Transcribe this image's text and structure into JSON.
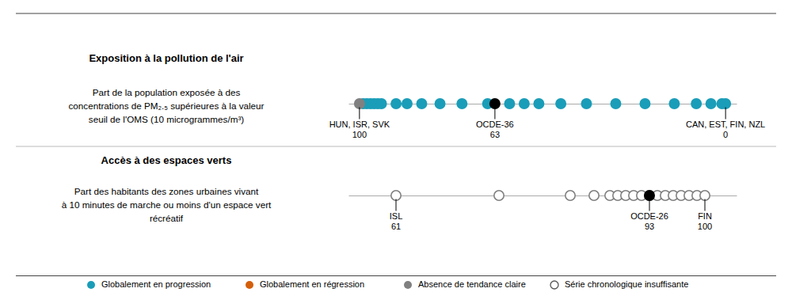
{
  "chart_data": [
    {
      "type": "dot",
      "title": "Exposition à la pollution de l'air",
      "subtitle": "Part de la population exposée à des\nconcentrations de PM₂.₅ supérieures à la valeur\nseuil de l'OMS (10 microgrammes/m³)",
      "xlim": [
        103,
        -3
      ],
      "tick_labels": false,
      "series": [
        {
          "name": "Globalement en progression",
          "color": "#1a9db8",
          "marker": "filled",
          "values": [
            99,
            98,
            97,
            96,
            95,
            94,
            90,
            87,
            83,
            78,
            72,
            65,
            59,
            55,
            51,
            45,
            38,
            30,
            22,
            14,
            8,
            4,
            1,
            0
          ]
        },
        {
          "name": "Absence de tendance claire",
          "color": "#808080",
          "marker": "filled",
          "values": [
            100
          ]
        },
        {
          "color": "#000000",
          "marker": "filled",
          "values": [
            63
          ]
        }
      ],
      "annotations": [
        {
          "x": 100,
          "label": "HUN, ISR, SVK",
          "value": 100
        },
        {
          "x": 63,
          "label": "OCDE-36",
          "value": 63
        },
        {
          "x": 0,
          "label": "CAN, EST, FIN, NZL",
          "value": 0
        }
      ]
    },
    {
      "type": "dot",
      "title": "Accès à des espaces verts",
      "subtitle": "Part des habitants des zones urbaines vivant\nà 10 minutes de marche ou moins d'un espace vert\nrécréatif",
      "xlim": [
        55,
        104
      ],
      "tick_labels": false,
      "series": [
        {
          "name": "Série chronologique insuffisante",
          "color": "#808080",
          "marker": "open",
          "values": [
            61,
            74,
            83,
            86,
            88,
            89,
            90,
            91,
            92,
            93,
            94,
            95,
            96,
            97,
            98,
            99,
            100
          ]
        },
        {
          "color": "#000000",
          "marker": "filled",
          "values": [
            93
          ]
        }
      ],
      "annotations": [
        {
          "x": 61,
          "label": "ISL",
          "value": 61
        },
        {
          "x": 93,
          "label": "OCDE-26",
          "value": 93
        },
        {
          "x": 100,
          "label": "FIN",
          "value": 100
        }
      ]
    },
    {
      "type": "legend",
      "series": [
        {
          "name": "Globalement en progression",
          "color": "#1a9db8",
          "marker": "filled"
        },
        {
          "name": "Globalement en régression",
          "color": "#d45f0a",
          "marker": "filled"
        },
        {
          "name": "Absence de tendance claire",
          "color": "#808080",
          "marker": "filled"
        },
        {
          "name": "Série chronologique insuffisante",
          "color": "#555555",
          "marker": "open"
        }
      ]
    }
  ]
}
